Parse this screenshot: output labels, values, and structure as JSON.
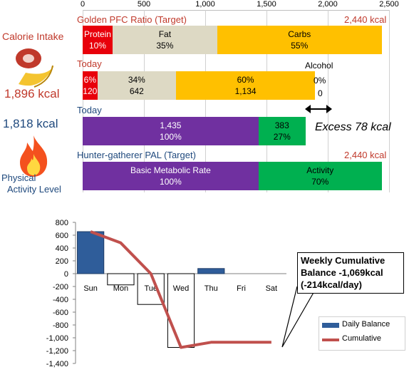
{
  "left_panel": {
    "calorie_intake_label": "Calorie Intake",
    "calorie_intake_value": "1,896 kcal",
    "expenditure_value": "1,818 kcal",
    "physical_activity_label_1": "Physical",
    "physical_activity_label_2": "Activity Level"
  },
  "top_axis": {
    "ticks": [
      "0",
      "500",
      "1,000",
      "1,500",
      "2,000",
      "2,500"
    ],
    "values": [
      0,
      500,
      1000,
      1500,
      2000,
      2500
    ],
    "max": 2500
  },
  "pfc_target": {
    "title": "Golden PFC Ratio (Target)",
    "total": "2,440 kcal",
    "segments": [
      {
        "name": "Protein",
        "pct": "10%",
        "kcal": 244,
        "color": "#e8000b"
      },
      {
        "name": "Fat",
        "pct": "35%",
        "kcal": 854,
        "color": "#ddd9c4"
      },
      {
        "name": "Carbs",
        "pct": "55%",
        "kcal": 1342,
        "color": "#ffc000"
      }
    ]
  },
  "today_intake": {
    "title": "Today",
    "alcohol_label": "Alcohol",
    "segments": [
      {
        "pct": "6%",
        "kcal_label": "120",
        "kcal": 120,
        "color": "#e8000b"
      },
      {
        "pct": "34%",
        "kcal_label": "642",
        "kcal": 642,
        "color": "#ddd9c4"
      },
      {
        "pct": "60%",
        "kcal_label": "1,134",
        "kcal": 1134,
        "color": "#ffc000"
      }
    ],
    "alcohol_pct": "0%",
    "alcohol_kcal": "0"
  },
  "today_expenditure": {
    "title": "Today",
    "excess_label": "Excess 78 kcal",
    "segments": [
      {
        "line1": "1,435",
        "line2": "100%",
        "kcal": 1435,
        "color": "#7030a0"
      },
      {
        "line1": "383",
        "line2": "27%",
        "kcal": 383,
        "color": "#00b050"
      }
    ]
  },
  "pal_target": {
    "title": "Hunter-gatherer  PAL (Target)",
    "total": "2,440 kcal",
    "segments": [
      {
        "line1": "Basic Metabolic Rate",
        "line2": "100%",
        "kcal": 1435,
        "color": "#7030a0"
      },
      {
        "line1": "Activity",
        "line2": "70%",
        "kcal": 1005,
        "color": "#00b050"
      }
    ]
  },
  "colors": {
    "accent_red": "#c0392b",
    "accent_blue": "#1f497d",
    "bar_blue": "#2f5d9a",
    "line_red": "#c0504d"
  },
  "chart_data": {
    "type": "bar",
    "categories": [
      "Sun",
      "Mon",
      "Tue",
      "Wed",
      "Thu",
      "Fri",
      "Sat"
    ],
    "series": [
      {
        "name": "Daily Balance",
        "type": "bar",
        "values": [
          655,
          -175,
          -480,
          -1150,
          80,
          null,
          null
        ]
      },
      {
        "name": "Cumulative",
        "type": "line",
        "values": [
          655,
          480,
          0,
          -1150,
          -1070,
          -1070,
          -1070
        ]
      }
    ],
    "y_ticks": [
      800,
      600,
      400,
      200,
      0,
      -200,
      -400,
      -600,
      -800,
      -1000,
      -1200,
      -1400
    ],
    "y_tick_labels": [
      "800",
      "600",
      "400",
      "200",
      "0",
      "-200",
      "-400",
      "-600",
      "-800",
      "-1,000",
      "-1,200",
      "-1,400"
    ],
    "ylim": [
      -1400,
      800
    ],
    "legend_position": "bottom-right",
    "annotation": {
      "line1": "Weekly Cumulative",
      "line2": "Balance -1,069kcal",
      "line3": "(-214kcal/day)"
    }
  }
}
